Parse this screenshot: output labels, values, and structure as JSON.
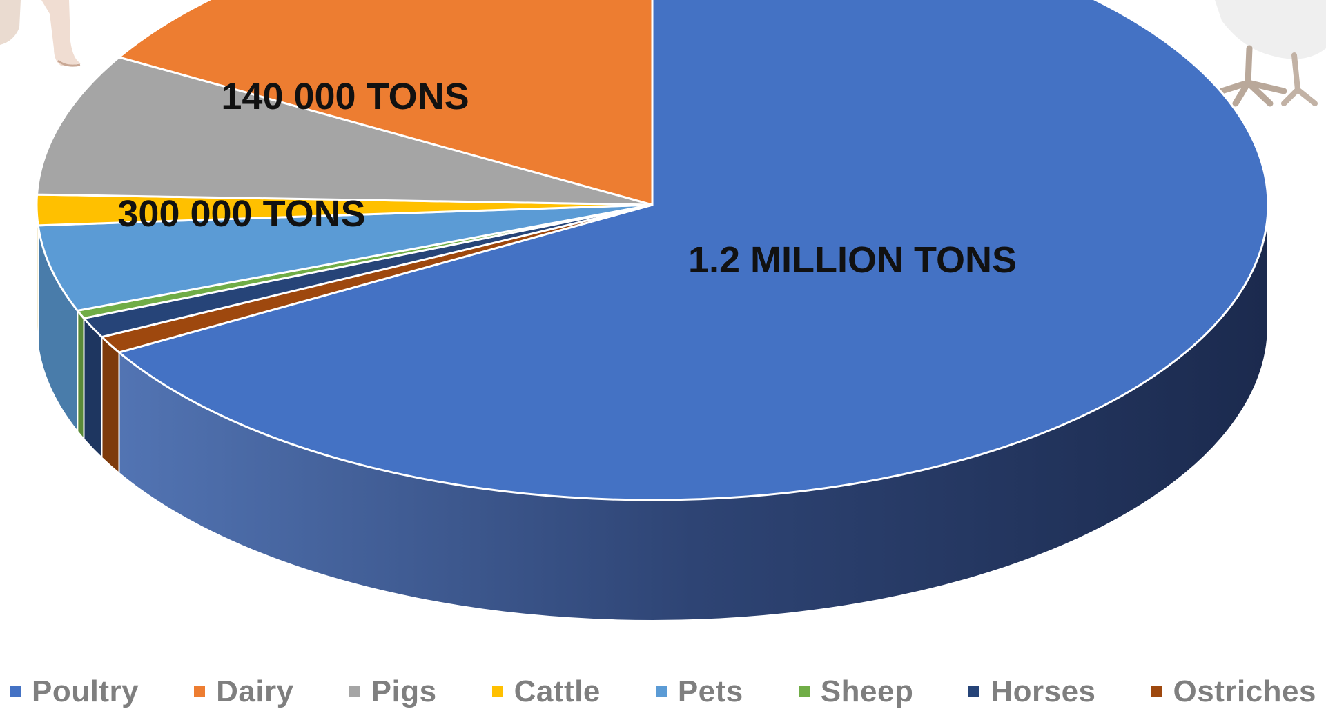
{
  "chart_data": {
    "type": "pie",
    "style": "3d",
    "title": "",
    "legend_position": "bottom",
    "categories": [
      "Poultry",
      "Dairy",
      "Pigs",
      "Cattle",
      "Pets",
      "Sheep",
      "Horses",
      "Ostriches"
    ],
    "values": [
      1200000,
      300000,
      140000,
      30000,
      85000,
      8000,
      20000,
      17000
    ],
    "colors": [
      "#4472C4",
      "#ED7D31",
      "#A5A5A5",
      "#FFC000",
      "#5B9BD5",
      "#70AD47",
      "#264478",
      "#9E480E"
    ],
    "data_labels": {
      "Poultry": "1.2 MILLION TONS",
      "Dairy": "300 000 TONS",
      "Pigs": "140 000 TONS"
    }
  },
  "decorations": {
    "top_left": "animal-feet-icon",
    "top_right": "chicken-feet-icon"
  }
}
